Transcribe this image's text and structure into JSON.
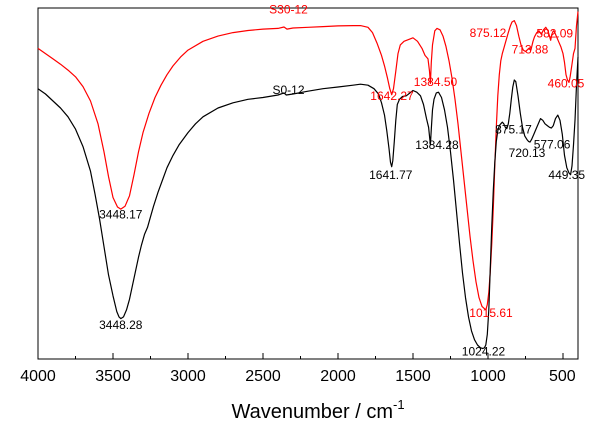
{
  "chart_data": {
    "type": "line",
    "title": "",
    "xlabel": "Wavenumber / cm",
    "xlabel_sup": "-1",
    "ylabel": "",
    "xlim": [
      4000,
      400
    ],
    "ylim": [
      0,
      100
    ],
    "x_ticks": [
      4000,
      3500,
      3000,
      2500,
      2000,
      1500,
      1000,
      500
    ],
    "grid": false,
    "series": [
      {
        "name": "S30-12",
        "color": "#ff0000",
        "points": [
          [
            4000,
            88.5
          ],
          [
            3950,
            87.0
          ],
          [
            3900,
            85.5
          ],
          [
            3850,
            84.0
          ],
          [
            3800,
            82.3
          ],
          [
            3750,
            80.4
          ],
          [
            3700,
            77.6
          ],
          [
            3650,
            73.5
          ],
          [
            3600,
            67.0
          ],
          [
            3560,
            59.0
          ],
          [
            3530,
            52.0
          ],
          [
            3500,
            46.0
          ],
          [
            3470,
            43.3
          ],
          [
            3448,
            42.7
          ],
          [
            3420,
            43.5
          ],
          [
            3390,
            46.5
          ],
          [
            3360,
            52.5
          ],
          [
            3330,
            59.0
          ],
          [
            3300,
            64.5
          ],
          [
            3260,
            70.0
          ],
          [
            3220,
            74.5
          ],
          [
            3180,
            78.0
          ],
          [
            3140,
            81.0
          ],
          [
            3100,
            83.5
          ],
          [
            3050,
            86.0
          ],
          [
            3000,
            88.0
          ],
          [
            2900,
            90.5
          ],
          [
            2800,
            92.0
          ],
          [
            2700,
            93.0
          ],
          [
            2600,
            93.6
          ],
          [
            2500,
            94.0
          ],
          [
            2400,
            94.2
          ],
          [
            2360,
            94.6
          ],
          [
            2340,
            94.0
          ],
          [
            2300,
            94.3
          ],
          [
            2200,
            94.5
          ],
          [
            2100,
            94.7
          ],
          [
            2000,
            94.9
          ],
          [
            1900,
            95.0
          ],
          [
            1850,
            95.0
          ],
          [
            1800,
            94.5
          ],
          [
            1770,
            93.0
          ],
          [
            1740,
            90.0
          ],
          [
            1710,
            86.5
          ],
          [
            1690,
            83.5
          ],
          [
            1670,
            80.0
          ],
          [
            1655,
            77.0
          ],
          [
            1642,
            75.3
          ],
          [
            1630,
            77.0
          ],
          [
            1615,
            82.0
          ],
          [
            1600,
            87.0
          ],
          [
            1585,
            89.5
          ],
          [
            1560,
            90.5
          ],
          [
            1530,
            91.0
          ],
          [
            1500,
            91.5
          ],
          [
            1470,
            90.5
          ],
          [
            1440,
            88.5
          ],
          [
            1420,
            86.5
          ],
          [
            1400,
            85.5
          ],
          [
            1390,
            82.0
          ],
          [
            1384,
            78.5
          ],
          [
            1378,
            84.5
          ],
          [
            1370,
            89.5
          ],
          [
            1355,
            93.5
          ],
          [
            1340,
            94.2
          ],
          [
            1320,
            93.8
          ],
          [
            1300,
            92.0
          ],
          [
            1280,
            89.0
          ],
          [
            1260,
            85.0
          ],
          [
            1240,
            80.0
          ],
          [
            1220,
            74.0
          ],
          [
            1200,
            67.0
          ],
          [
            1180,
            59.0
          ],
          [
            1160,
            51.0
          ],
          [
            1140,
            43.0
          ],
          [
            1120,
            35.0
          ],
          [
            1100,
            28.0
          ],
          [
            1080,
            22.0
          ],
          [
            1060,
            17.5
          ],
          [
            1040,
            15.0
          ],
          [
            1020,
            14.2
          ],
          [
            1015,
            14.0
          ],
          [
            1005,
            15.5
          ],
          [
            995,
            19.0
          ],
          [
            985,
            25.0
          ],
          [
            975,
            33.0
          ],
          [
            965,
            43.0
          ],
          [
            955,
            55.0
          ],
          [
            945,
            66.0
          ],
          [
            935,
            75.0
          ],
          [
            925,
            81.0
          ],
          [
            915,
            85.0
          ],
          [
            905,
            87.0
          ],
          [
            895,
            88.5
          ],
          [
            885,
            90.0
          ],
          [
            875,
            91.5
          ],
          [
            865,
            93.0
          ],
          [
            850,
            95.0
          ],
          [
            840,
            96.0
          ],
          [
            825,
            96.4
          ],
          [
            810,
            95.0
          ],
          [
            795,
            92.0
          ],
          [
            780,
            89.5
          ],
          [
            765,
            88.0
          ],
          [
            750,
            87.6
          ],
          [
            735,
            88.2
          ],
          [
            725,
            88.6
          ],
          [
            714,
            88.0
          ],
          [
            700,
            90.5
          ],
          [
            690,
            91.8
          ],
          [
            675,
            93.0
          ],
          [
            660,
            93.5
          ],
          [
            645,
            92.5
          ],
          [
            630,
            93.8
          ],
          [
            615,
            94.5
          ],
          [
            600,
            93.5
          ],
          [
            590,
            92.0
          ],
          [
            582,
            90.8
          ],
          [
            575,
            92.5
          ],
          [
            565,
            93.5
          ],
          [
            555,
            93.0
          ],
          [
            545,
            92.0
          ],
          [
            530,
            90.5
          ],
          [
            515,
            89.0
          ],
          [
            500,
            87.0
          ],
          [
            490,
            84.5
          ],
          [
            480,
            81.0
          ],
          [
            470,
            79.5
          ],
          [
            460,
            78.8
          ],
          [
            452,
            80.5
          ],
          [
            440,
            84.0
          ],
          [
            430,
            87.0
          ],
          [
            420,
            88.5
          ],
          [
            410,
            95.0
          ],
          [
            400,
            99.0
          ]
        ]
      },
      {
        "name": "S0-12",
        "color": "#000000",
        "points": [
          [
            4000,
            77.0
          ],
          [
            3950,
            75.5
          ],
          [
            3900,
            73.5
          ],
          [
            3850,
            71.5
          ],
          [
            3800,
            69.0
          ],
          [
            3750,
            65.5
          ],
          [
            3700,
            60.5
          ],
          [
            3650,
            53.5
          ],
          [
            3620,
            47.0
          ],
          [
            3590,
            40.0
          ],
          [
            3560,
            32.0
          ],
          [
            3530,
            24.0
          ],
          [
            3500,
            18.0
          ],
          [
            3475,
            13.5
          ],
          [
            3460,
            12.0
          ],
          [
            3448,
            11.5
          ],
          [
            3430,
            12.0
          ],
          [
            3410,
            14.0
          ],
          [
            3390,
            17.0
          ],
          [
            3370,
            21.0
          ],
          [
            3350,
            25.0
          ],
          [
            3330,
            29.0
          ],
          [
            3310,
            32.5
          ],
          [
            3290,
            35.5
          ],
          [
            3270,
            37.5
          ],
          [
            3250,
            40.5
          ],
          [
            3230,
            43.5
          ],
          [
            3200,
            47.5
          ],
          [
            3170,
            51.0
          ],
          [
            3140,
            54.5
          ],
          [
            3100,
            58.0
          ],
          [
            3060,
            61.0
          ],
          [
            3000,
            64.5
          ],
          [
            2950,
            67.0
          ],
          [
            2900,
            69.0
          ],
          [
            2800,
            71.5
          ],
          [
            2700,
            73.0
          ],
          [
            2600,
            74.0
          ],
          [
            2500,
            74.5
          ],
          [
            2400,
            75.2
          ],
          [
            2360,
            75.8
          ],
          [
            2345,
            75.2
          ],
          [
            2300,
            75.5
          ],
          [
            2200,
            76.3
          ],
          [
            2100,
            77.0
          ],
          [
            2000,
            77.5
          ],
          [
            1900,
            78.0
          ],
          [
            1850,
            78.3
          ],
          [
            1800,
            78.0
          ],
          [
            1760,
            77.0
          ],
          [
            1730,
            75.5
          ],
          [
            1710,
            73.0
          ],
          [
            1690,
            69.5
          ],
          [
            1675,
            65.0
          ],
          [
            1660,
            60.0
          ],
          [
            1650,
            56.0
          ],
          [
            1642,
            54.8
          ],
          [
            1635,
            56.5
          ],
          [
            1625,
            62.0
          ],
          [
            1615,
            68.0
          ],
          [
            1605,
            72.5
          ],
          [
            1590,
            74.0
          ],
          [
            1570,
            74.8
          ],
          [
            1545,
            75.0
          ],
          [
            1520,
            75.8
          ],
          [
            1500,
            76.5
          ],
          [
            1475,
            76.0
          ],
          [
            1450,
            75.0
          ],
          [
            1430,
            72.5
          ],
          [
            1410,
            68.5
          ],
          [
            1396,
            66.0
          ],
          [
            1390,
            63.5
          ],
          [
            1384,
            61.0
          ],
          [
            1378,
            65.5
          ],
          [
            1370,
            71.0
          ],
          [
            1360,
            74.0
          ],
          [
            1345,
            75.8
          ],
          [
            1330,
            76.0
          ],
          [
            1310,
            74.5
          ],
          [
            1290,
            71.0
          ],
          [
            1270,
            66.0
          ],
          [
            1250,
            59.0
          ],
          [
            1230,
            51.0
          ],
          [
            1210,
            42.0
          ],
          [
            1190,
            33.0
          ],
          [
            1170,
            24.5
          ],
          [
            1150,
            17.5
          ],
          [
            1130,
            12.0
          ],
          [
            1110,
            8.0
          ],
          [
            1090,
            5.5
          ],
          [
            1070,
            4.0
          ],
          [
            1050,
            3.2
          ],
          [
            1035,
            3.0
          ],
          [
            1024,
            3.2
          ],
          [
            1015,
            4.0
          ],
          [
            1005,
            7.0
          ],
          [
            995,
            14.0
          ],
          [
            985,
            26.0
          ],
          [
            975,
            38.0
          ],
          [
            965,
            48.0
          ],
          [
            955,
            56.0
          ],
          [
            945,
            62.0
          ],
          [
            935,
            65.0
          ],
          [
            925,
            66.5
          ],
          [
            915,
            67.0
          ],
          [
            905,
            67.5
          ],
          [
            895,
            67.0
          ],
          [
            885,
            66.0
          ],
          [
            875,
            65.6
          ],
          [
            865,
            67.0
          ],
          [
            855,
            70.0
          ],
          [
            845,
            74.0
          ],
          [
            835,
            77.5
          ],
          [
            825,
            79.5
          ],
          [
            815,
            79.0
          ],
          [
            800,
            75.0
          ],
          [
            785,
            70.0
          ],
          [
            770,
            66.0
          ],
          [
            755,
            63.5
          ],
          [
            740,
            62.5
          ],
          [
            730,
            62.0
          ],
          [
            720,
            61.8
          ],
          [
            710,
            62.5
          ],
          [
            695,
            64.0
          ],
          [
            680,
            65.5
          ],
          [
            665,
            67.0
          ],
          [
            650,
            68.5
          ],
          [
            635,
            68.0
          ],
          [
            620,
            67.0
          ],
          [
            605,
            66.5
          ],
          [
            590,
            66.0
          ],
          [
            577,
            65.8
          ],
          [
            565,
            66.5
          ],
          [
            550,
            68.5
          ],
          [
            535,
            69.5
          ],
          [
            520,
            68.0
          ],
          [
            505,
            64.0
          ],
          [
            490,
            58.0
          ],
          [
            475,
            54.5
          ],
          [
            460,
            53.0
          ],
          [
            449,
            52.5
          ],
          [
            440,
            55.0
          ],
          [
            430,
            61.0
          ],
          [
            420,
            68.0
          ],
          [
            410,
            78.0
          ],
          [
            400,
            86.0
          ]
        ]
      }
    ],
    "labels": {
      "series_labels": [
        {
          "text": "S30-12",
          "x": 2330,
          "y": 98.5,
          "color": "#ff0000"
        },
        {
          "text": "S0-12",
          "x": 2330,
          "y": 75.5,
          "color": "#000000"
        }
      ],
      "peak_labels_red": [
        {
          "text": "1642.27",
          "x": 1640,
          "y": 73.8
        },
        {
          "text": "1384.50",
          "x": 1350,
          "y": 77.8
        },
        {
          "text": "875.12",
          "x": 1000,
          "y": 91.8
        },
        {
          "text": "713.88",
          "x": 720,
          "y": 87.0
        },
        {
          "text": "582.09",
          "x": 555,
          "y": 91.6
        },
        {
          "text": "460.05",
          "x": 480,
          "y": 77.3
        },
        {
          "text": "1015.61",
          "x": 980,
          "y": 12.0
        }
      ],
      "peak_labels_black": [
        {
          "text": "3448.17",
          "x": 3448,
          "y": 40.0
        },
        {
          "text": "3448.28",
          "x": 3448,
          "y": 8.5
        },
        {
          "text": "1641.77",
          "x": 1648,
          "y": 51.3
        },
        {
          "text": "1384.28",
          "x": 1340,
          "y": 59.8
        },
        {
          "text": "875.17",
          "x": 830,
          "y": 64.3
        },
        {
          "text": "577.06",
          "x": 573,
          "y": 60.0
        },
        {
          "text": "720.13",
          "x": 740,
          "y": 57.5
        },
        {
          "text": "449.35",
          "x": 475,
          "y": 51.3
        },
        {
          "text": "1024.22",
          "x": 1030,
          "y": 1.0
        }
      ]
    }
  }
}
